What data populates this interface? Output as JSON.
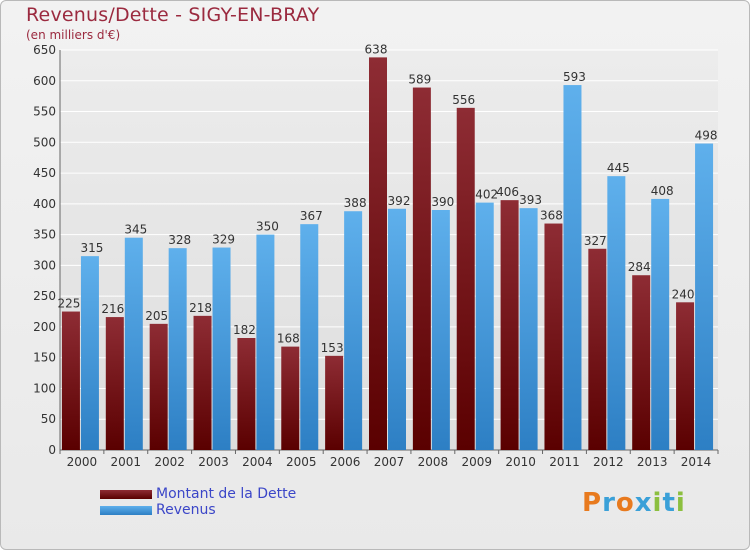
{
  "header": {
    "title": "Revenus/Dette - SIGY-EN-BRAY",
    "subtitle": "(en milliers d'€)"
  },
  "logo": {
    "text": "Proxiti",
    "colors": [
      "#e87a1e",
      "#3aa0d8",
      "#e87a1e",
      "#3aa0d8",
      "#8cbf3f",
      "#3aa0d8",
      "#8cbf3f"
    ]
  },
  "colors": {
    "dette_top": "#8e2c34",
    "dette_bottom": "#5a0000",
    "revenus_top": "#5fb0ec",
    "revenus_bottom": "#2d7fc4",
    "grid": "#ffffff",
    "axis_text": "#333333"
  },
  "legend": {
    "position": "bottom-left",
    "items": [
      {
        "label": "Montant de la Dette",
        "series": 0
      },
      {
        "label": "Revenus",
        "series": 1
      }
    ]
  },
  "chart_data": {
    "type": "bar",
    "title": "Revenus/Dette - SIGY-EN-BRAY",
    "subtitle": "(en milliers d'€)",
    "xlabel": "",
    "ylabel": "",
    "categories": [
      "2000",
      "2001",
      "2002",
      "2003",
      "2004",
      "2005",
      "2006",
      "2007",
      "2008",
      "2009",
      "2010",
      "2011",
      "2012",
      "2013",
      "2014"
    ],
    "series": [
      {
        "name": "Montant de la Dette",
        "values": [
          225,
          216,
          205,
          218,
          182,
          168,
          153,
          638,
          589,
          556,
          406,
          368,
          327,
          284,
          240
        ]
      },
      {
        "name": "Revenus",
        "values": [
          315,
          345,
          328,
          329,
          350,
          367,
          388,
          392,
          390,
          402,
          393,
          593,
          445,
          408,
          498
        ]
      }
    ],
    "ylim": [
      0,
      650
    ],
    "yticks": [
      0,
      50,
      100,
      150,
      200,
      250,
      300,
      350,
      400,
      450,
      500,
      550,
      600,
      650
    ],
    "grid": true,
    "data_labels": true
  }
}
